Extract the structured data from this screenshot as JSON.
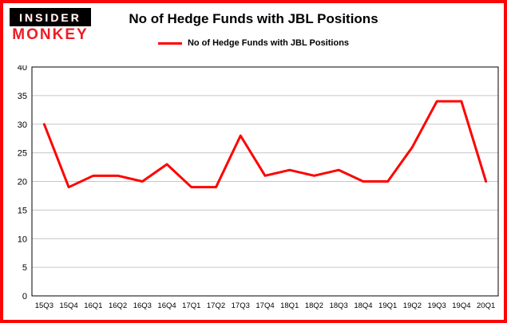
{
  "brand": {
    "line1": "INSIDER",
    "line2": "MONKEY"
  },
  "title": "No of Hedge Funds with JBL Positions",
  "legend": {
    "label": "No of Hedge Funds with JBL Positions"
  },
  "colors": {
    "line": "#ff0000",
    "frame": "#f90606",
    "grid": "#c6c6c6",
    "plot_border": "#000000",
    "axis_text": "#000000",
    "logo_bg": "#000000",
    "logo_top_text": "#ffffff",
    "logo_bottom_text": "#ee1c25"
  },
  "chart_data": {
    "type": "line",
    "title": "No of Hedge Funds with JBL Positions",
    "categories": [
      "15Q3",
      "15Q4",
      "16Q1",
      "16Q2",
      "16Q3",
      "16Q4",
      "17Q1",
      "17Q2",
      "17Q3",
      "17Q4",
      "18Q1",
      "18Q2",
      "18Q3",
      "18Q4",
      "19Q1",
      "19Q2",
      "19Q3",
      "19Q4",
      "20Q1"
    ],
    "values": [
      30,
      19,
      21,
      21,
      20,
      23,
      19,
      19,
      28,
      21,
      22,
      21,
      22,
      20,
      20,
      26,
      34,
      34,
      20
    ],
    "xlabel": "",
    "ylabel": "",
    "ylim": [
      0,
      40
    ],
    "yticks": [
      0,
      5,
      10,
      15,
      20,
      25,
      30,
      35,
      40
    ],
    "grid": true,
    "legend_position": "top",
    "line_color": "#ff0000"
  }
}
